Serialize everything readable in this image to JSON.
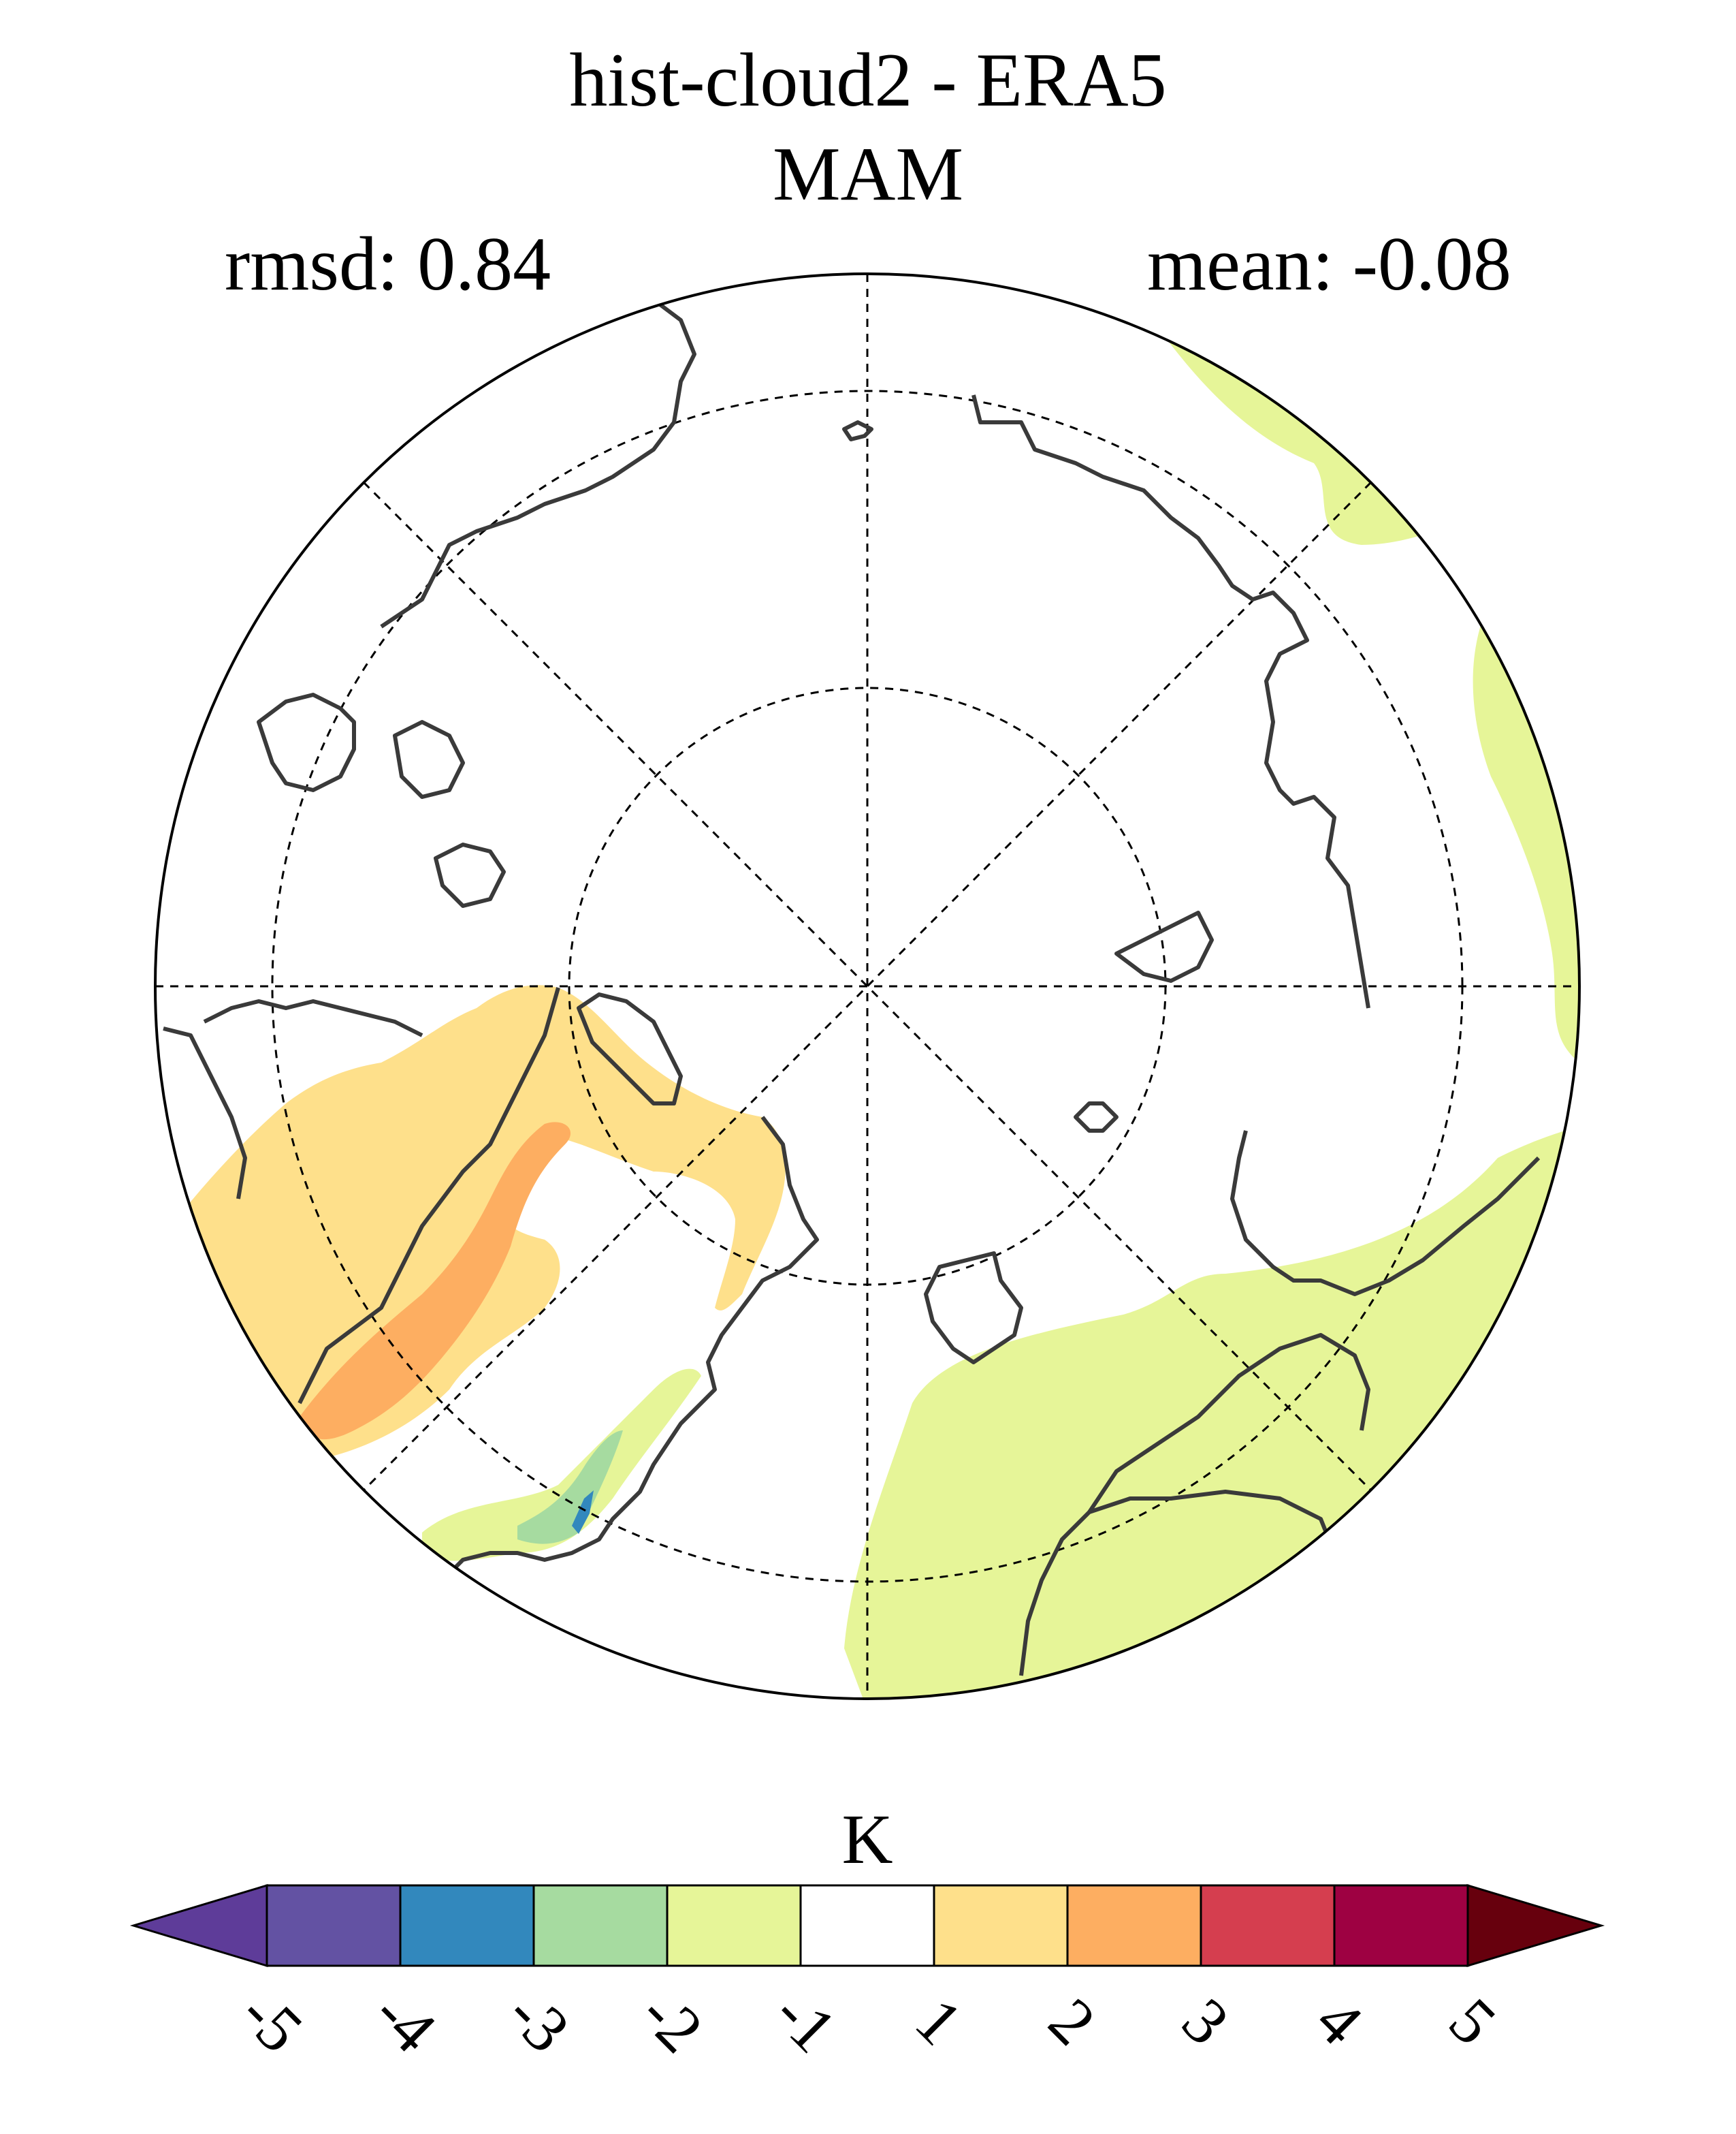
{
  "title": "hist-cloud2 - ERA5",
  "season": "MAM",
  "stats": {
    "rmsd": "rmsd: 0.84",
    "mean": "mean: -0.08"
  },
  "colorbar": {
    "unit": "K",
    "ticks": [
      "-5",
      "-4",
      "-3",
      "-2",
      "-1",
      "1",
      "2",
      "3",
      "4",
      "5"
    ],
    "colors": [
      "#5e3c99",
      "#6352a3",
      "#3288bd",
      "#a6dba0",
      "#e6f598",
      "#ffffff",
      "#fee08b",
      "#fdae61",
      "#d53e4f",
      "#9e0142",
      "#67000d"
    ]
  },
  "map": {
    "projection": "north-polar-stereographic",
    "features": [
      "coastlines",
      "graticule"
    ],
    "anomaly_colors": {
      "warm1": "#fee08b",
      "warm2": "#fdae61",
      "cool1": "#e6f598",
      "cool2": "#a6dba0",
      "cool3": "#3288bd"
    }
  }
}
